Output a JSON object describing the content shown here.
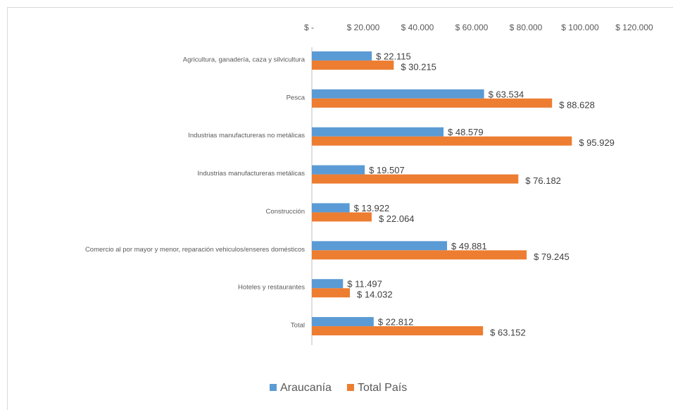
{
  "chart_data": {
    "type": "bar",
    "orientation": "horizontal",
    "categories": [
      "Agricultura, ganadería, caza y silvicultura",
      "Pesca",
      "Industrias manufactureras no metálicas",
      "Industrias manufactureras metálicas",
      "Construcción",
      "Comercio al por mayor y menor, reparación vehiculos/enseres domésticos",
      "Hoteles y restaurantes",
      "Total"
    ],
    "series": [
      {
        "name": "Araucanía",
        "color": "#5b9bd5",
        "values": [
          22115,
          63534,
          48579,
          19507,
          13922,
          49881,
          11497,
          22812
        ],
        "value_labels": [
          "$ 22.115",
          "$ 63.534",
          "$ 48.579",
          "$ 19.507",
          "$ 13.922",
          "$ 49.881",
          "$ 11.497",
          "$ 22.812"
        ]
      },
      {
        "name": "Total País",
        "color": "#ed7d31",
        "values": [
          30215,
          88628,
          95929,
          76182,
          22064,
          79245,
          14032,
          63152
        ],
        "value_labels": [
          "$ 30.215",
          "$ 88.628",
          "$ 95.929",
          "$ 76.182",
          "$ 22.064",
          "$ 79.245",
          "$ 14.032",
          "$ 63.152"
        ]
      }
    ],
    "xlim": [
      0,
      120000
    ],
    "xticks": [
      {
        "value": 0,
        "label": "$ -"
      },
      {
        "value": 20000,
        "label": "$ 20.000"
      },
      {
        "value": 40000,
        "label": "$ 40.000"
      },
      {
        "value": 60000,
        "label": "$ 60.000"
      },
      {
        "value": 80000,
        "label": "$ 80.000"
      },
      {
        "value": 100000,
        "label": "$ 100.000"
      },
      {
        "value": 120000,
        "label": "$ 120.000"
      }
    ],
    "grid": false,
    "legend": "bottom"
  }
}
